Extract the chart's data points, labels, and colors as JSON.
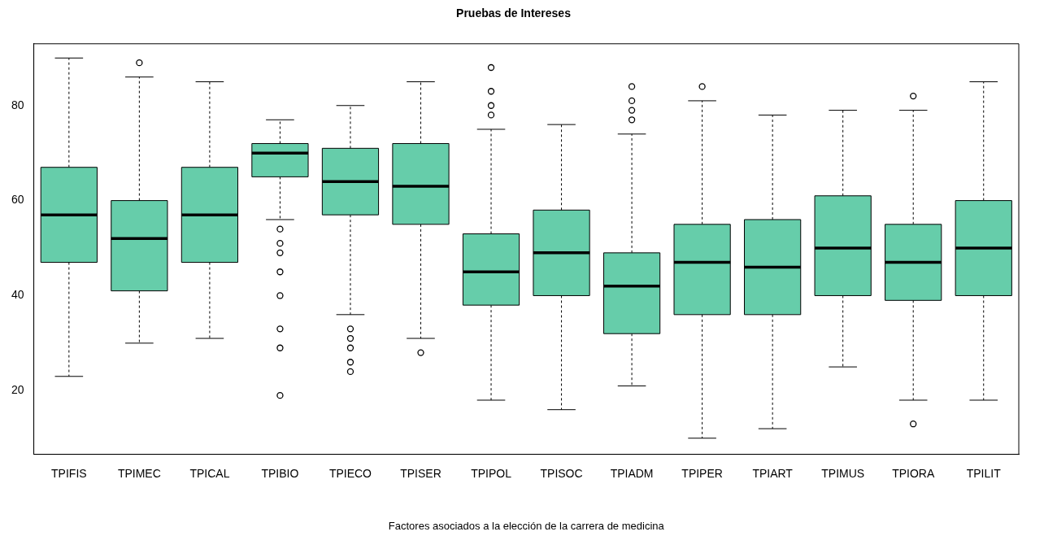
{
  "chart_data": {
    "type": "box",
    "title": "Pruebas de Intereses",
    "xlabel": "Factores asociados a la elección de la carrera de medicina",
    "categories": [
      "TPIFIS",
      "TPIMEC",
      "TPICAL",
      "TPIBIO",
      "TPIECO",
      "TPISER",
      "TPIPOL",
      "TPISOC",
      "TPIADM",
      "TPIPER",
      "TPIART",
      "TPIMUS",
      "TPIORA",
      "TPILIT"
    ],
    "color": "#66cdaa",
    "ylim": [
      6.6,
      93
    ],
    "yticks": [
      20,
      40,
      60,
      80
    ],
    "grid": false,
    "legend": false,
    "boxes": [
      {
        "low": 23,
        "q1": 47,
        "median": 57,
        "q3": 67,
        "high": 90
      },
      {
        "low": 30,
        "q1": 41,
        "median": 52,
        "q3": 60,
        "high": 86,
        "outliers": [
          89
        ]
      },
      {
        "low": 31,
        "q1": 47,
        "median": 57,
        "q3": 67,
        "high": 85
      },
      {
        "low": 56,
        "q1": 65,
        "median": 70,
        "q3": 72,
        "high": 77,
        "outliers": [
          54,
          51,
          49,
          45,
          40,
          33,
          29,
          19
        ]
      },
      {
        "low": 36,
        "q1": 57,
        "median": 64,
        "q3": 71,
        "high": 80,
        "outliers": [
          33,
          31,
          29,
          26,
          24
        ]
      },
      {
        "low": 31,
        "q1": 55,
        "median": 63,
        "q3": 72,
        "high": 85,
        "outliers": [
          28
        ]
      },
      {
        "low": 18,
        "q1": 38,
        "median": 45,
        "q3": 53,
        "high": 75,
        "outliers": [
          88,
          83,
          80,
          78
        ]
      },
      {
        "low": 16,
        "q1": 40,
        "median": 49,
        "q3": 58,
        "high": 76
      },
      {
        "low": 21,
        "q1": 32,
        "median": 42,
        "q3": 49,
        "high": 74,
        "outliers": [
          84,
          81,
          79,
          77
        ]
      },
      {
        "low": 10,
        "q1": 36,
        "median": 47,
        "q3": 55,
        "high": 81,
        "outliers": [
          84
        ]
      },
      {
        "low": 12,
        "q1": 36,
        "median": 46,
        "q3": 56,
        "high": 78
      },
      {
        "low": 25,
        "q1": 40,
        "median": 50,
        "q3": 61,
        "high": 79
      },
      {
        "low": 18,
        "q1": 39,
        "median": 47,
        "q3": 55,
        "high": 79,
        "outliers": [
          82,
          13
        ]
      },
      {
        "low": 18,
        "q1": 40,
        "median": 50,
        "q3": 60,
        "high": 85
      }
    ]
  }
}
